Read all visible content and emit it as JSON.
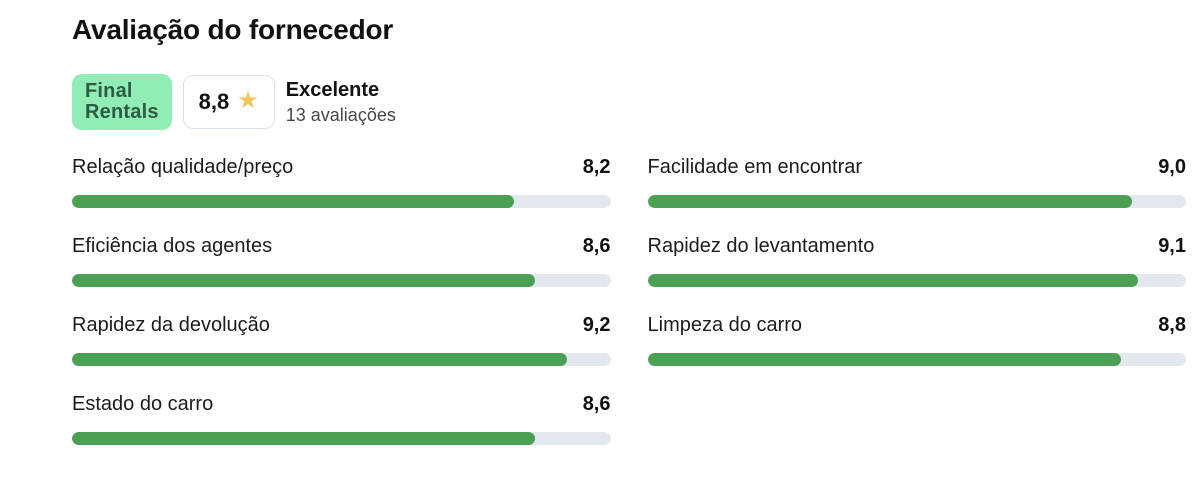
{
  "page": {
    "title": "Avaliação do fornecedor"
  },
  "supplier": {
    "logo": {
      "line1": "Final",
      "line2": "Rentals"
    },
    "score": {
      "value": "8,8",
      "star_icon": "★"
    },
    "verdict": {
      "label": "Excelente",
      "reviews": "13 avaliações"
    }
  },
  "ratings": {
    "items": [
      {
        "label": "Relação qualidade/preço",
        "value": "8,2"
      },
      {
        "label": "Facilidade em encontrar",
        "value": "9,0"
      },
      {
        "label": "Eficiência dos agentes",
        "value": "8,6"
      },
      {
        "label": "Rapidez do levantamento",
        "value": "9,1"
      },
      {
        "label": "Rapidez da devolução",
        "value": "9,2"
      },
      {
        "label": "Limpeza do carro",
        "value": "8,8"
      },
      {
        "label": "Estado do carro",
        "value": "8,6"
      }
    ],
    "scale_max": 10
  },
  "colors": {
    "bar_fill": "#4ca054",
    "bar_track": "#e3e8ee",
    "logo_bg": "#90edb5",
    "logo_text": "#2f5a43",
    "star": "#f0c75e",
    "score_box_border": "#d9e2eb"
  },
  "chart_data": {
    "type": "bar",
    "title": "Avaliação do fornecedor",
    "overall_score": 8.8,
    "overall_label": "Excelente",
    "review_count": 13,
    "categories": [
      "Relação qualidade/preço",
      "Facilidade em encontrar",
      "Eficiência dos agentes",
      "Rapidez do levantamento",
      "Rapidez da devolução",
      "Limpeza do carro",
      "Estado do carro"
    ],
    "values": [
      8.2,
      9.0,
      8.6,
      9.1,
      9.2,
      8.8,
      8.6
    ],
    "xlabel": "",
    "ylabel": "",
    "ylim": [
      0,
      10
    ],
    "orientation": "horizontal",
    "grid": false,
    "legend_position": "none"
  }
}
